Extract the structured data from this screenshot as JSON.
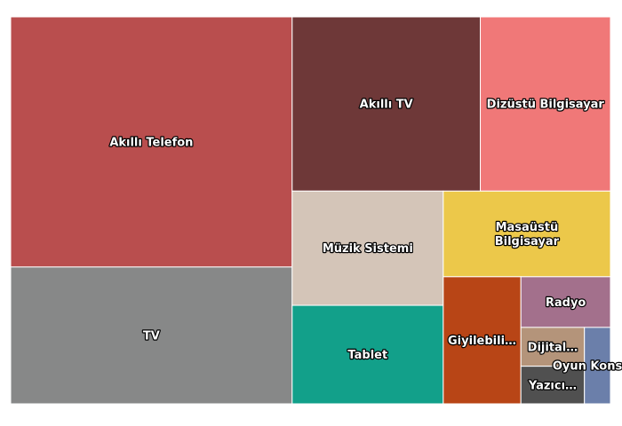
{
  "chart_data": {
    "type": "treemap",
    "title": "",
    "items": [
      {
        "label": "Akıllı Telefon",
        "display": "Akıllı Telefon",
        "value": 885,
        "color": "#b94e4e"
      },
      {
        "label": "TV",
        "display": "TV",
        "value": 484,
        "color": "#878888"
      },
      {
        "label": "Akıllı TV",
        "display": "Akıllı TV",
        "value": 412,
        "color": "#6e3838"
      },
      {
        "label": "Dizüstü Bilgisayar",
        "display": "Dizüstü Bilgisayar",
        "value": 285,
        "color": "#f07878"
      },
      {
        "label": "Müzik Sistemi",
        "display": "Müzik Sistemi",
        "value": 217,
        "color": "#d4c5b8"
      },
      {
        "label": "Tablet",
        "display": "Tablet",
        "value": 187,
        "color": "#12a08a"
      },
      {
        "label": "Masaüstü Bilgisayar",
        "display": "Masaüstü\nBilgisayar",
        "value": 180,
        "color": "#ecc84a"
      },
      {
        "label": "Giyilebilir",
        "display": "Giyilebili…",
        "value": 124,
        "color": "#b84516"
      },
      {
        "label": "Radyo",
        "display": "Radyo",
        "value": 57,
        "color": "#a3708c"
      },
      {
        "label": "Dijital",
        "display": "Dijital…",
        "value": 31,
        "color": "#b4947a"
      },
      {
        "label": "Yazıcı",
        "display": "Yazıcı…",
        "value": 30,
        "color": "#505050"
      },
      {
        "label": "Oyun Konsolu",
        "display": "Oyun Konsolu",
        "value": 25,
        "color": "#6b7faa"
      }
    ]
  }
}
